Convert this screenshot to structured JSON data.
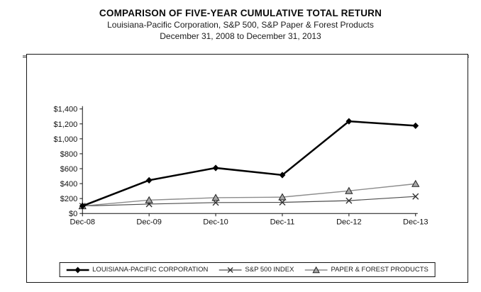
{
  "chart_data": {
    "type": "line",
    "title": "COMPARISON OF FIVE-YEAR CUMULATIVE TOTAL RETURN",
    "subtitle": "Louisiana-Pacific Corporation, S&P 500, S&P Paper & Forest Products",
    "date_range": "December 31, 2008 to December 31, 2013",
    "categories": [
      "Dec-08",
      "Dec-09",
      "Dec-10",
      "Dec-11",
      "Dec-12",
      "Dec-13"
    ],
    "series": [
      {
        "name": "LOUISIANA-PACIFIC CORPORATION",
        "marker": "diamond",
        "color": "#000000",
        "stroke_width": 2.5,
        "values": [
          100,
          445,
          610,
          515,
          1235,
          1175
        ]
      },
      {
        "name": "S&P 500 INDEX",
        "marker": "x",
        "color": "#4d4d4d",
        "stroke_width": 1.2,
        "values": [
          100,
          126,
          146,
          149,
          172,
          228
        ]
      },
      {
        "name": "PAPER & FOREST PRODUCTS",
        "marker": "triangle",
        "color": "#8c8c8c",
        "fill": "#a6a6a6",
        "stroke_width": 1.4,
        "values": [
          100,
          179,
          211,
          219,
          303,
          397
        ]
      }
    ],
    "y_ticks": [
      {
        "label": "$0",
        "value": 0
      },
      {
        "label": "$200",
        "value": 200
      },
      {
        "label": "$400",
        "value": 400
      },
      {
        "label": "$600",
        "value": 600
      },
      {
        "label": "$800",
        "value": 800
      },
      {
        "label": "$1,000",
        "value": 1000
      },
      {
        "label": "$1,200",
        "value": 1200
      },
      {
        "label": "$1,400",
        "value": 1400
      }
    ],
    "ylim": [
      0,
      1400
    ],
    "xlabel": "",
    "ylabel": "",
    "grid": false,
    "legend_position": "bottom",
    "axis_color": "#111111",
    "background_color": "#ffffff"
  }
}
